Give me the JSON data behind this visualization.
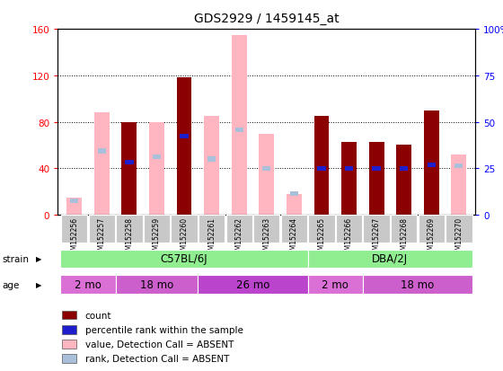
{
  "title": "GDS2929 / 1459145_at",
  "samples": [
    "GSM152256",
    "GSM152257",
    "GSM152258",
    "GSM152259",
    "GSM152260",
    "GSM152261",
    "GSM152262",
    "GSM152263",
    "GSM152264",
    "GSM152265",
    "GSM152266",
    "GSM152267",
    "GSM152268",
    "GSM152269",
    "GSM152270"
  ],
  "count_values": [
    null,
    null,
    80,
    null,
    118,
    null,
    null,
    null,
    null,
    85,
    63,
    63,
    60,
    90,
    null
  ],
  "percentile_rank": [
    null,
    null,
    45,
    null,
    68,
    null,
    null,
    null,
    null,
    40,
    40,
    40,
    40,
    43,
    null
  ],
  "absent_value": [
    15,
    88,
    null,
    80,
    null,
    85,
    155,
    70,
    18,
    null,
    null,
    null,
    null,
    null,
    52
  ],
  "absent_rank": [
    12,
    55,
    null,
    50,
    null,
    48,
    73,
    40,
    18,
    null,
    null,
    null,
    null,
    null,
    42
  ],
  "is_absent": [
    true,
    true,
    false,
    true,
    false,
    true,
    true,
    true,
    true,
    false,
    false,
    false,
    false,
    false,
    true
  ],
  "ylim_left": [
    0,
    160
  ],
  "ylim_right": [
    0,
    100
  ],
  "yticks_left": [
    0,
    40,
    80,
    120,
    160
  ],
  "yticks_right": [
    0,
    25,
    50,
    75,
    100
  ],
  "color_count": "#8B0000",
  "color_rank": "#1E1ECD",
  "color_absent_value": "#FFB6C1",
  "color_absent_rank": "#AABFDA",
  "strain_labels": [
    {
      "label": "C57BL/6J",
      "start": 0,
      "end": 9
    },
    {
      "label": "DBA/2J",
      "start": 9,
      "end": 15
    }
  ],
  "age_labels": [
    {
      "label": "2 mo",
      "start": 0,
      "end": 2
    },
    {
      "label": "18 mo",
      "start": 2,
      "end": 5
    },
    {
      "label": "26 mo",
      "start": 5,
      "end": 9
    },
    {
      "label": "2 mo",
      "start": 9,
      "end": 11
    },
    {
      "label": "18 mo",
      "start": 11,
      "end": 15
    }
  ],
  "strain_color": "#90EE90",
  "age_colors": [
    "#DA70D6",
    "#CC66CC",
    "#BB44BB",
    "#DA70D6",
    "#CC66CC"
  ],
  "sample_bg": "#C8C8C8",
  "bar_width": 0.55,
  "legend_items": [
    {
      "color": "#8B0000",
      "label": "count"
    },
    {
      "color": "#1E1ECD",
      "label": "percentile rank within the sample"
    },
    {
      "color": "#FFB6C1",
      "label": "value, Detection Call = ABSENT"
    },
    {
      "color": "#AABFDA",
      "label": "rank, Detection Call = ABSENT"
    }
  ]
}
